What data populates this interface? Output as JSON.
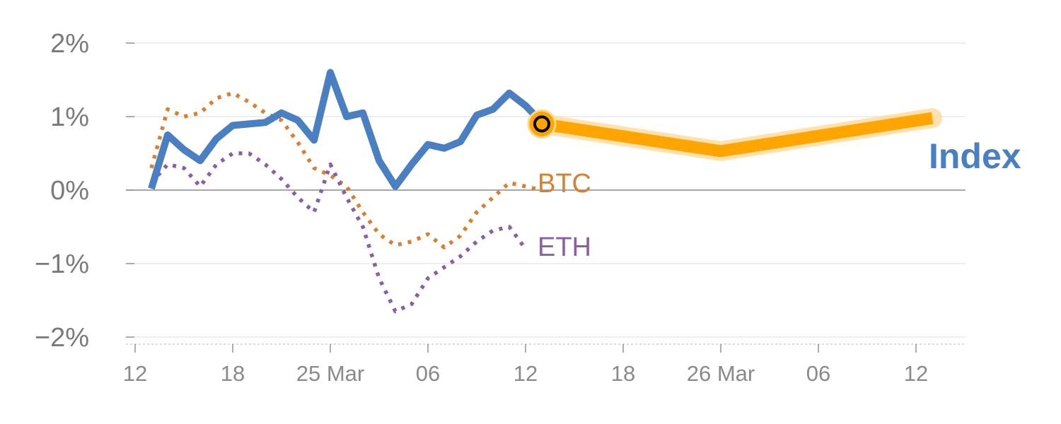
{
  "chart_data": {
    "type": "line",
    "title": "",
    "xlabel": "",
    "ylabel": "",
    "ylim": [
      -2,
      2
    ],
    "y_ticks": [
      {
        "value": 2,
        "label": "2%"
      },
      {
        "value": 1,
        "label": "1%"
      },
      {
        "value": 0,
        "label": "0%"
      },
      {
        "value": -1,
        "label": "−1%"
      },
      {
        "value": -2,
        "label": "−2%"
      }
    ],
    "x_ticks": [
      {
        "x": 0,
        "label": "12"
      },
      {
        "x": 6,
        "label": "18"
      },
      {
        "x": 12,
        "label": "25 Mar"
      },
      {
        "x": 18,
        "label": "06"
      },
      {
        "x": 24,
        "label": "12"
      },
      {
        "x": 30,
        "label": "18"
      },
      {
        "x": 36,
        "label": "26 Mar"
      },
      {
        "x": 42,
        "label": "06"
      },
      {
        "x": 48,
        "label": "12"
      }
    ],
    "xlim": [
      0,
      51
    ],
    "grid": true,
    "series": [
      {
        "name": "BTC",
        "color": "#d97f30",
        "style": "dotted",
        "points": [
          [
            1,
            0.3
          ],
          [
            2,
            1.1
          ],
          [
            3,
            1.0
          ],
          [
            4,
            1.05
          ],
          [
            5,
            1.25
          ],
          [
            6,
            1.32
          ],
          [
            7,
            1.2
          ],
          [
            8,
            1.05
          ],
          [
            9,
            0.95
          ],
          [
            10,
            0.65
          ],
          [
            11,
            0.3
          ],
          [
            12,
            0.2
          ],
          [
            13,
            0.05
          ],
          [
            14,
            -0.3
          ],
          [
            15,
            -0.6
          ],
          [
            16,
            -0.75
          ],
          [
            17,
            -0.7
          ],
          [
            18,
            -0.6
          ],
          [
            19,
            -0.78
          ],
          [
            20,
            -0.62
          ],
          [
            21,
            -0.3
          ],
          [
            22,
            -0.1
          ],
          [
            23,
            0.1
          ],
          [
            24,
            0.05
          ],
          [
            25,
            0.0
          ]
        ]
      },
      {
        "name": "ETH",
        "color": "#8a5fa5",
        "style": "dotted",
        "points": [
          [
            1,
            0.1
          ],
          [
            2,
            0.35
          ],
          [
            3,
            0.3
          ],
          [
            4,
            0.05
          ],
          [
            5,
            0.35
          ],
          [
            6,
            0.5
          ],
          [
            7,
            0.5
          ],
          [
            8,
            0.35
          ],
          [
            9,
            0.15
          ],
          [
            10,
            -0.1
          ],
          [
            11,
            -0.3
          ],
          [
            12,
            0.35
          ],
          [
            13,
            -0.1
          ],
          [
            14,
            -0.5
          ],
          [
            15,
            -1.2
          ],
          [
            16,
            -1.65
          ],
          [
            17,
            -1.55
          ],
          [
            18,
            -1.2
          ],
          [
            19,
            -1.05
          ],
          [
            20,
            -0.9
          ],
          [
            21,
            -0.7
          ],
          [
            22,
            -0.55
          ],
          [
            23,
            -0.5
          ],
          [
            24,
            -0.8
          ]
        ]
      },
      {
        "name": "Index",
        "color": "#4a7fc1",
        "style": "solid",
        "points": [
          [
            1,
            0.02
          ],
          [
            2,
            0.75
          ],
          [
            3,
            0.55
          ],
          [
            4,
            0.4
          ],
          [
            5,
            0.7
          ],
          [
            6,
            0.88
          ],
          [
            7,
            0.9
          ],
          [
            8,
            0.92
          ],
          [
            9,
            1.05
          ],
          [
            10,
            0.95
          ],
          [
            11,
            0.68
          ],
          [
            12,
            1.6
          ],
          [
            13,
            1.0
          ],
          [
            14,
            1.05
          ],
          [
            15,
            0.4
          ],
          [
            16,
            0.05
          ],
          [
            17,
            0.35
          ],
          [
            18,
            0.62
          ],
          [
            19,
            0.57
          ],
          [
            20,
            0.66
          ],
          [
            21,
            1.02
          ],
          [
            22,
            1.1
          ],
          [
            23,
            1.32
          ],
          [
            24,
            1.15
          ],
          [
            25,
            0.92
          ]
        ]
      },
      {
        "name": "Index",
        "color": "#ffa500",
        "style": "projection",
        "points": [
          [
            25,
            0.9
          ],
          [
            36,
            0.53
          ],
          [
            49,
            0.98
          ]
        ]
      }
    ],
    "labels": {
      "btc": "BTC",
      "eth": "ETH",
      "index": "Index"
    },
    "highlight_point": {
      "x": 25,
      "y": 0.9
    }
  }
}
